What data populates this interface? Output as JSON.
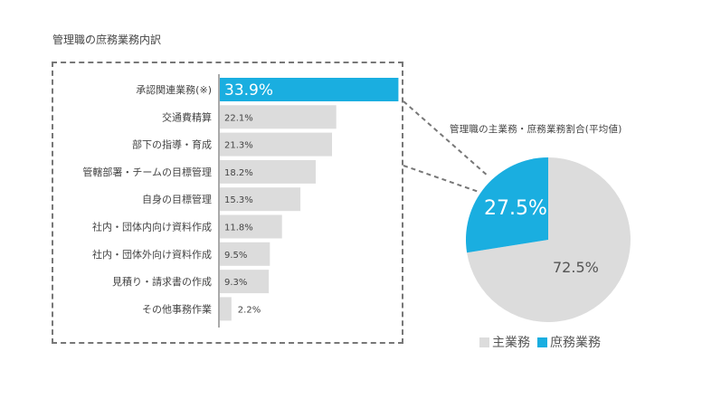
{
  "bar_title": "管理職の庶務業務内訳",
  "pie_title": "管理職の主業務・庶務業務割合(平均値)",
  "colors": {
    "accent": "#1aaee0",
    "grey": "#dcdcdc",
    "dash": "#777777",
    "axis": "#555555"
  },
  "chart_data": [
    {
      "type": "bar",
      "orientation": "horizontal",
      "title": "管理職の庶務業務内訳",
      "categories": [
        "承認関連業務(※)",
        "交通費精算",
        "部下の指導・育成",
        "管轄部署・チームの目標管理",
        "自身の目標管理",
        "社内・団体内向け資料作成",
        "社内・団体外向け資料作成",
        "見積り・請求書の作成",
        "その他事務作業"
      ],
      "values": [
        33.9,
        22.1,
        21.3,
        18.2,
        15.3,
        11.8,
        9.5,
        9.3,
        2.2
      ],
      "labels": [
        "33.9%",
        "22.1%",
        "21.3%",
        "18.2%",
        "15.3%",
        "11.8%",
        "9.5%",
        "9.3%",
        "2.2%"
      ],
      "highlight_index": 0,
      "xlim": [
        0,
        34
      ]
    },
    {
      "type": "pie",
      "title": "管理職の主業務・庶務業務割合(平均値)",
      "categories": [
        "主業務",
        "庶務業務"
      ],
      "values": [
        72.5,
        27.5
      ],
      "labels": [
        "72.5%",
        "27.5%"
      ],
      "legend": [
        "主業務",
        "庶務業務"
      ],
      "legend_position": "bottom"
    }
  ]
}
